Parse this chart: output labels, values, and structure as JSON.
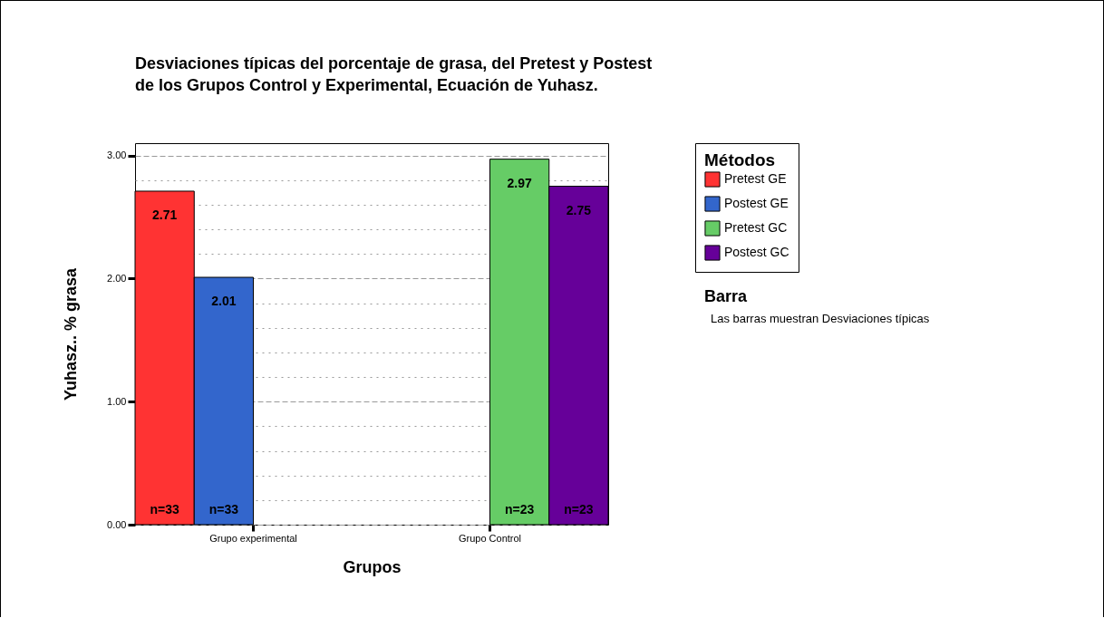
{
  "chart_data": {
    "type": "bar",
    "title": "Desviaciones típicas del porcentaje de grasa, del Pretest y Postest\nde los Grupos Control y Experimental,  Ecuación de Yuhasz.",
    "xlabel": "Grupos",
    "ylabel": "Yuhasz..  % grasa",
    "legend_title": "Métodos",
    "categories": [
      "Grupo experimental",
      "Grupo Control"
    ],
    "series": [
      {
        "name": "Pretest GE",
        "color": "#ff3333",
        "values": [
          2.71,
          null
        ]
      },
      {
        "name": "Postest GE",
        "color": "#3366cc",
        "values": [
          2.01,
          null
        ]
      },
      {
        "name": "Pretest GC",
        "color": "#66cc66",
        "values": [
          null,
          2.97
        ]
      },
      {
        "name": "Postest GC",
        "color": "#660099",
        "values": [
          null,
          2.75
        ]
      }
    ],
    "ylim": [
      0,
      3.1
    ],
    "yticks": [
      {
        "value": 0,
        "label": "0.00"
      },
      {
        "value": 0.2,
        "label": null
      },
      {
        "value": 0.4,
        "label": null
      },
      {
        "value": 0.6,
        "label": null
      },
      {
        "value": 0.8,
        "label": null
      },
      {
        "value": 1,
        "label": "1.00"
      },
      {
        "value": 1.2,
        "label": null
      },
      {
        "value": 1.4,
        "label": null
      },
      {
        "value": 1.6,
        "label": null
      },
      {
        "value": 1.8,
        "label": null
      },
      {
        "value": 2,
        "label": "2.00"
      },
      {
        "value": 2.2,
        "label": null
      },
      {
        "value": 2.4,
        "label": null
      },
      {
        "value": 2.6,
        "label": null
      },
      {
        "value": 2.8,
        "label": null
      },
      {
        "value": 3,
        "label": "3.00"
      }
    ],
    "grid": "y",
    "legend": "top right",
    "data_labels": true,
    "annotations": [
      "n=33",
      "n=33",
      "n=23",
      "n=23",
      "Barra",
      "Las barras muestran Desviaciones típicas"
    ]
  }
}
